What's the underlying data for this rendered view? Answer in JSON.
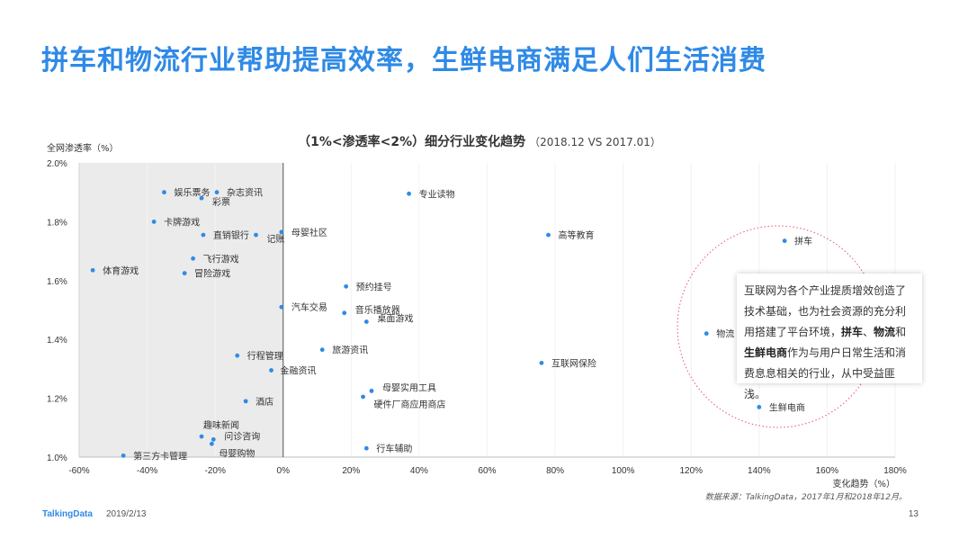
{
  "page_title": "拼车和物流行业帮助提高效率，生鲜电商满足人们生活消费",
  "chart_title": {
    "main": "（1%<渗透率<2%）细分行业变化趋势",
    "sub": "（2018.12 VS 2017.01）"
  },
  "callout": {
    "parts": [
      {
        "text": "互联网为各个产业提质增效创造了技术基础，也为社会资源的充分利用搭建了平台环境，",
        "bold": false
      },
      {
        "text": "拼车",
        "bold": true
      },
      {
        "text": "、",
        "bold": false
      },
      {
        "text": "物流",
        "bold": true
      },
      {
        "text": "和",
        "bold": false
      },
      {
        "text": "生鲜电商",
        "bold": true
      },
      {
        "text": "作为与用户日常生活和消费息息相关的行业，从中受益匪浅。",
        "bold": false
      }
    ]
  },
  "source": "数据来源：TalkingData，2017年1月和2018年12月。",
  "footer": {
    "brand": "TalkingData",
    "date": "2019/2/13",
    "page": "13"
  },
  "colors": {
    "title": "#2f8ae6",
    "point": "#2f8ae6",
    "shade": "#ebebeb",
    "circle": "#e8556b"
  },
  "chart_data": {
    "type": "scatter",
    "xlabel": "变化趋势（%）",
    "ylabel": "全网渗透率（%）",
    "xlim": [
      -60,
      180
    ],
    "ylim": [
      1.0,
      2.0
    ],
    "x_ticks": [
      "-60%",
      "-40%",
      "-20%",
      "0%",
      "20%",
      "40%",
      "60%",
      "80%",
      "100%",
      "120%",
      "140%",
      "160%",
      "180%"
    ],
    "y_ticks": [
      "1.0%",
      "1.2%",
      "1.4%",
      "1.6%",
      "1.8%",
      "2.0%"
    ],
    "shaded_region": [
      -60,
      0
    ],
    "points": [
      {
        "label": "娱乐票务",
        "x": -35,
        "y": 1.9
      },
      {
        "label": "杂志资讯",
        "x": -19.5,
        "y": 1.9
      },
      {
        "label": "彩票",
        "x": -24,
        "y": 1.88
      },
      {
        "label": "卡牌游戏",
        "x": -38,
        "y": 1.8
      },
      {
        "label": "直销银行",
        "x": -23.5,
        "y": 1.755
      },
      {
        "label": "记账",
        "x": -8,
        "y": 1.755
      },
      {
        "label": "母婴社区",
        "x": -0.5,
        "y": 1.765
      },
      {
        "label": "飞行游戏",
        "x": -26.5,
        "y": 1.675
      },
      {
        "label": "体育游戏",
        "x": -56,
        "y": 1.635
      },
      {
        "label": "冒险游戏",
        "x": -29,
        "y": 1.625
      },
      {
        "label": "专业读物",
        "x": 37,
        "y": 1.895
      },
      {
        "label": "高等教育",
        "x": 78,
        "y": 1.755
      },
      {
        "label": "拼车",
        "x": 147.5,
        "y": 1.735
      },
      {
        "label": "预约挂号",
        "x": 18.5,
        "y": 1.58
      },
      {
        "label": "汽车交易",
        "x": -0.5,
        "y": 1.51
      },
      {
        "label": "音乐播放器",
        "x": 18,
        "y": 1.49
      },
      {
        "label": "桌面游戏",
        "x": 24.5,
        "y": 1.46
      },
      {
        "label": "物流",
        "x": 124.5,
        "y": 1.42
      },
      {
        "label": "旅游资讯",
        "x": 11.5,
        "y": 1.365
      },
      {
        "label": "行程管理",
        "x": -13.5,
        "y": 1.345
      },
      {
        "label": "互联网保险",
        "x": 76,
        "y": 1.32
      },
      {
        "label": "金融资讯",
        "x": -3.5,
        "y": 1.295
      },
      {
        "label": "母婴实用工具",
        "x": 26,
        "y": 1.225
      },
      {
        "label": "硬件厂商应用商店",
        "x": 23.5,
        "y": 1.205
      },
      {
        "label": "酒店",
        "x": -11,
        "y": 1.19
      },
      {
        "label": "生鲜电商",
        "x": 140,
        "y": 1.17
      },
      {
        "label": "趣味新闻",
        "x": -24,
        "y": 1.07
      },
      {
        "label": "问诊咨询",
        "x": -20.5,
        "y": 1.06
      },
      {
        "label": "母婴购物",
        "x": -21,
        "y": 1.045
      },
      {
        "label": "行车辅助",
        "x": 24.5,
        "y": 1.03
      },
      {
        "label": "第三方卡管理",
        "x": -47,
        "y": 1.005
      }
    ]
  }
}
